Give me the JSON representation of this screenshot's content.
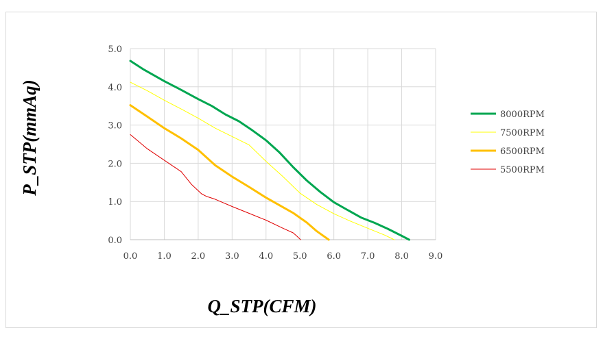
{
  "chart_data": {
    "type": "line",
    "xlabel": "Q_STP(CFM)",
    "ylabel": "P_STP(mmAq)",
    "xlim": [
      0,
      9
    ],
    "ylim": [
      0,
      5
    ],
    "x_ticks": [
      "0.0",
      "1.0",
      "2.0",
      "3.0",
      "4.0",
      "5.0",
      "6.0",
      "7.0",
      "8.0",
      "9.0"
    ],
    "y_ticks": [
      "0.0",
      "1.0",
      "2.0",
      "3.0",
      "4.0",
      "5.0"
    ],
    "grid": true,
    "legend_position": "right",
    "series": [
      {
        "name": "8000RPM",
        "color": "#00a650",
        "width": 3,
        "points": [
          [
            0,
            4.68
          ],
          [
            0.4,
            4.45
          ],
          [
            1.0,
            4.15
          ],
          [
            1.5,
            3.92
          ],
          [
            2.0,
            3.68
          ],
          [
            2.4,
            3.5
          ],
          [
            2.8,
            3.28
          ],
          [
            3.2,
            3.1
          ],
          [
            3.6,
            2.86
          ],
          [
            4.0,
            2.6
          ],
          [
            4.4,
            2.28
          ],
          [
            4.8,
            1.9
          ],
          [
            5.2,
            1.55
          ],
          [
            5.6,
            1.25
          ],
          [
            6.0,
            0.98
          ],
          [
            6.4,
            0.78
          ],
          [
            6.8,
            0.58
          ],
          [
            7.2,
            0.44
          ],
          [
            7.6,
            0.28
          ],
          [
            8.0,
            0.1
          ],
          [
            8.22,
            0.0
          ]
        ]
      },
      {
        "name": "7500RPM",
        "color": "#ffff00",
        "width": 1,
        "points": [
          [
            0,
            4.12
          ],
          [
            0.5,
            3.9
          ],
          [
            1.0,
            3.65
          ],
          [
            1.5,
            3.42
          ],
          [
            2.0,
            3.18
          ],
          [
            2.5,
            2.92
          ],
          [
            3.0,
            2.7
          ],
          [
            3.5,
            2.48
          ],
          [
            4.0,
            2.05
          ],
          [
            4.5,
            1.65
          ],
          [
            5.0,
            1.22
          ],
          [
            5.5,
            0.92
          ],
          [
            6.0,
            0.68
          ],
          [
            6.5,
            0.48
          ],
          [
            7.0,
            0.3
          ],
          [
            7.5,
            0.12
          ],
          [
            7.78,
            0.0
          ]
        ]
      },
      {
        "name": "6500RPM",
        "color": "#ffc000",
        "width": 3,
        "points": [
          [
            0,
            3.52
          ],
          [
            0.5,
            3.22
          ],
          [
            1.0,
            2.92
          ],
          [
            1.5,
            2.65
          ],
          [
            2.0,
            2.35
          ],
          [
            2.5,
            1.95
          ],
          [
            3.0,
            1.65
          ],
          [
            3.5,
            1.38
          ],
          [
            4.0,
            1.1
          ],
          [
            4.5,
            0.85
          ],
          [
            4.8,
            0.7
          ],
          [
            5.2,
            0.45
          ],
          [
            5.5,
            0.22
          ],
          [
            5.85,
            0.0
          ]
        ]
      },
      {
        "name": "5500RPM",
        "color": "#e00000",
        "width": 1,
        "points": [
          [
            0,
            2.75
          ],
          [
            0.5,
            2.38
          ],
          [
            1.0,
            2.08
          ],
          [
            1.5,
            1.78
          ],
          [
            1.8,
            1.45
          ],
          [
            2.1,
            1.2
          ],
          [
            2.25,
            1.13
          ],
          [
            2.5,
            1.06
          ],
          [
            3.0,
            0.87
          ],
          [
            3.5,
            0.69
          ],
          [
            4.0,
            0.51
          ],
          [
            4.5,
            0.3
          ],
          [
            4.8,
            0.18
          ],
          [
            4.9,
            0.1
          ],
          [
            5.02,
            0.0
          ]
        ]
      }
    ]
  }
}
